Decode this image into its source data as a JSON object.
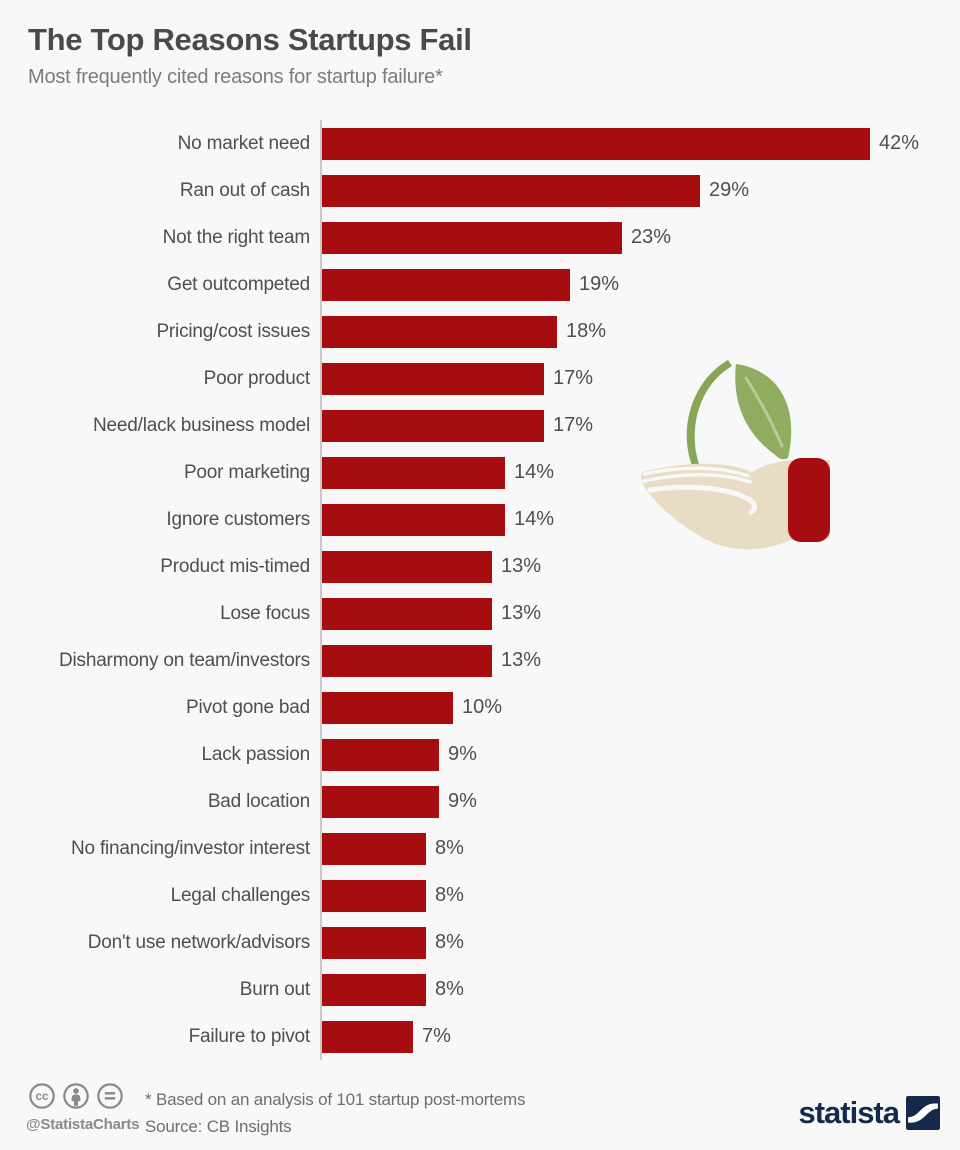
{
  "header": {
    "title": "The Top Reasons Startups Fail",
    "subtitle": "Most frequently cited reasons for startup failure*"
  },
  "chart_data": {
    "type": "bar",
    "orientation": "horizontal",
    "title": "The Top Reasons Startups Fail",
    "categories": [
      "No market need",
      "Ran out of cash",
      "Not the right team",
      "Get outcompeted",
      "Pricing/cost issues",
      "Poor product",
      "Need/lack business model",
      "Poor marketing",
      "Ignore customers",
      "Product mis-timed",
      "Lose focus",
      "Disharmony on team/investors",
      "Pivot gone bad",
      "Lack passion",
      "Bad location",
      "No financing/investor interest",
      "Legal challenges",
      "Don't use network/advisors",
      "Burn out",
      "Failure to pivot"
    ],
    "values": [
      42,
      29,
      23,
      19,
      18,
      17,
      17,
      14,
      14,
      13,
      13,
      13,
      10,
      9,
      9,
      8,
      8,
      8,
      8,
      7
    ],
    "value_suffix": "%",
    "xlim": [
      0,
      44
    ],
    "grid": false,
    "value_labels": "outside-end",
    "bar_color": "#a50d10",
    "axis_color": "#c9c9c9"
  },
  "illustration": {
    "name": "hand-holding-sprout",
    "leaf_color": "#8fac5f",
    "leaf_vein_color": "#b9cc97",
    "hand_color": "#e9dcc4",
    "cuff_color": "#a50d10"
  },
  "footer": {
    "license_icons": [
      "cc-icon",
      "attribution-icon",
      "equal-icon"
    ],
    "handle": "@StatistaCharts",
    "footnote": "* Based on an analysis of 101 startup post-mortems",
    "source": "Source: CB Insights",
    "brand": "statista"
  },
  "colors": {
    "background": "#f8f8f8",
    "bar": "#a50d10",
    "title": "#4a4a4a",
    "subtitle": "#7c7c7c",
    "label": "#4f4f4f",
    "axis": "#c9c9c9",
    "footer_gray": "#8a8a8a",
    "brand_navy": "#16294c"
  }
}
